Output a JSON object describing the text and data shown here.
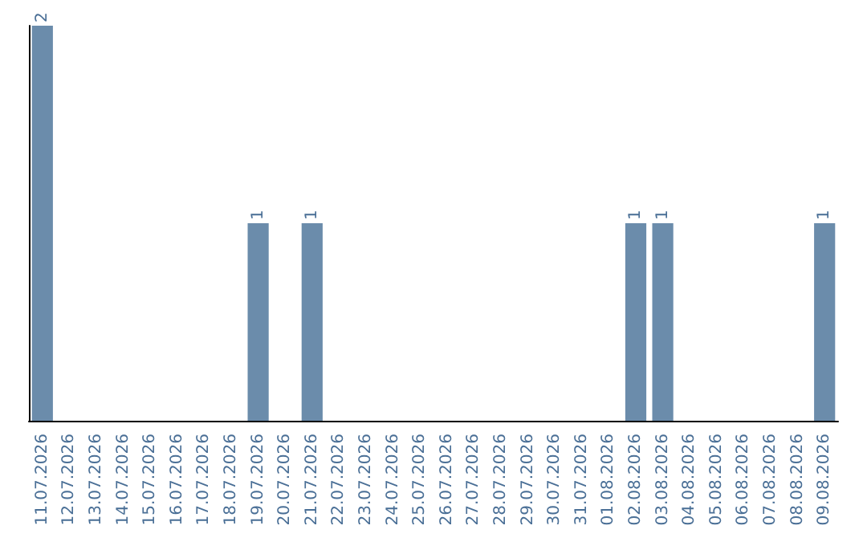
{
  "chart_data": {
    "type": "bar",
    "categories": [
      "11.07.2026",
      "12.07.2026",
      "13.07.2026",
      "14.07.2026",
      "15.07.2026",
      "16.07.2026",
      "17.07.2026",
      "18.07.2026",
      "19.07.2026",
      "20.07.2026",
      "21.07.2026",
      "22.07.2026",
      "23.07.2026",
      "24.07.2026",
      "25.07.2026",
      "26.07.2026",
      "27.07.2026",
      "28.07.2026",
      "29.07.2026",
      "30.07.2026",
      "31.07.2026",
      "01.08.2026",
      "02.08.2026",
      "03.08.2026",
      "04.08.2026",
      "05.08.2026",
      "06.08.2026",
      "07.08.2026",
      "08.08.2026",
      "09.08.2026"
    ],
    "values": [
      2,
      0,
      0,
      0,
      0,
      0,
      0,
      0,
      1,
      0,
      1,
      0,
      0,
      0,
      0,
      0,
      0,
      0,
      0,
      0,
      0,
      0,
      1,
      1,
      0,
      0,
      0,
      0,
      0,
      1
    ],
    "value_labels": [
      "2",
      null,
      null,
      null,
      null,
      null,
      null,
      null,
      "1",
      null,
      "1",
      null,
      null,
      null,
      null,
      null,
      null,
      null,
      null,
      null,
      null,
      null,
      "1",
      "1",
      null,
      null,
      null,
      null,
      null,
      "1"
    ],
    "color": "#6b8cab"
  }
}
